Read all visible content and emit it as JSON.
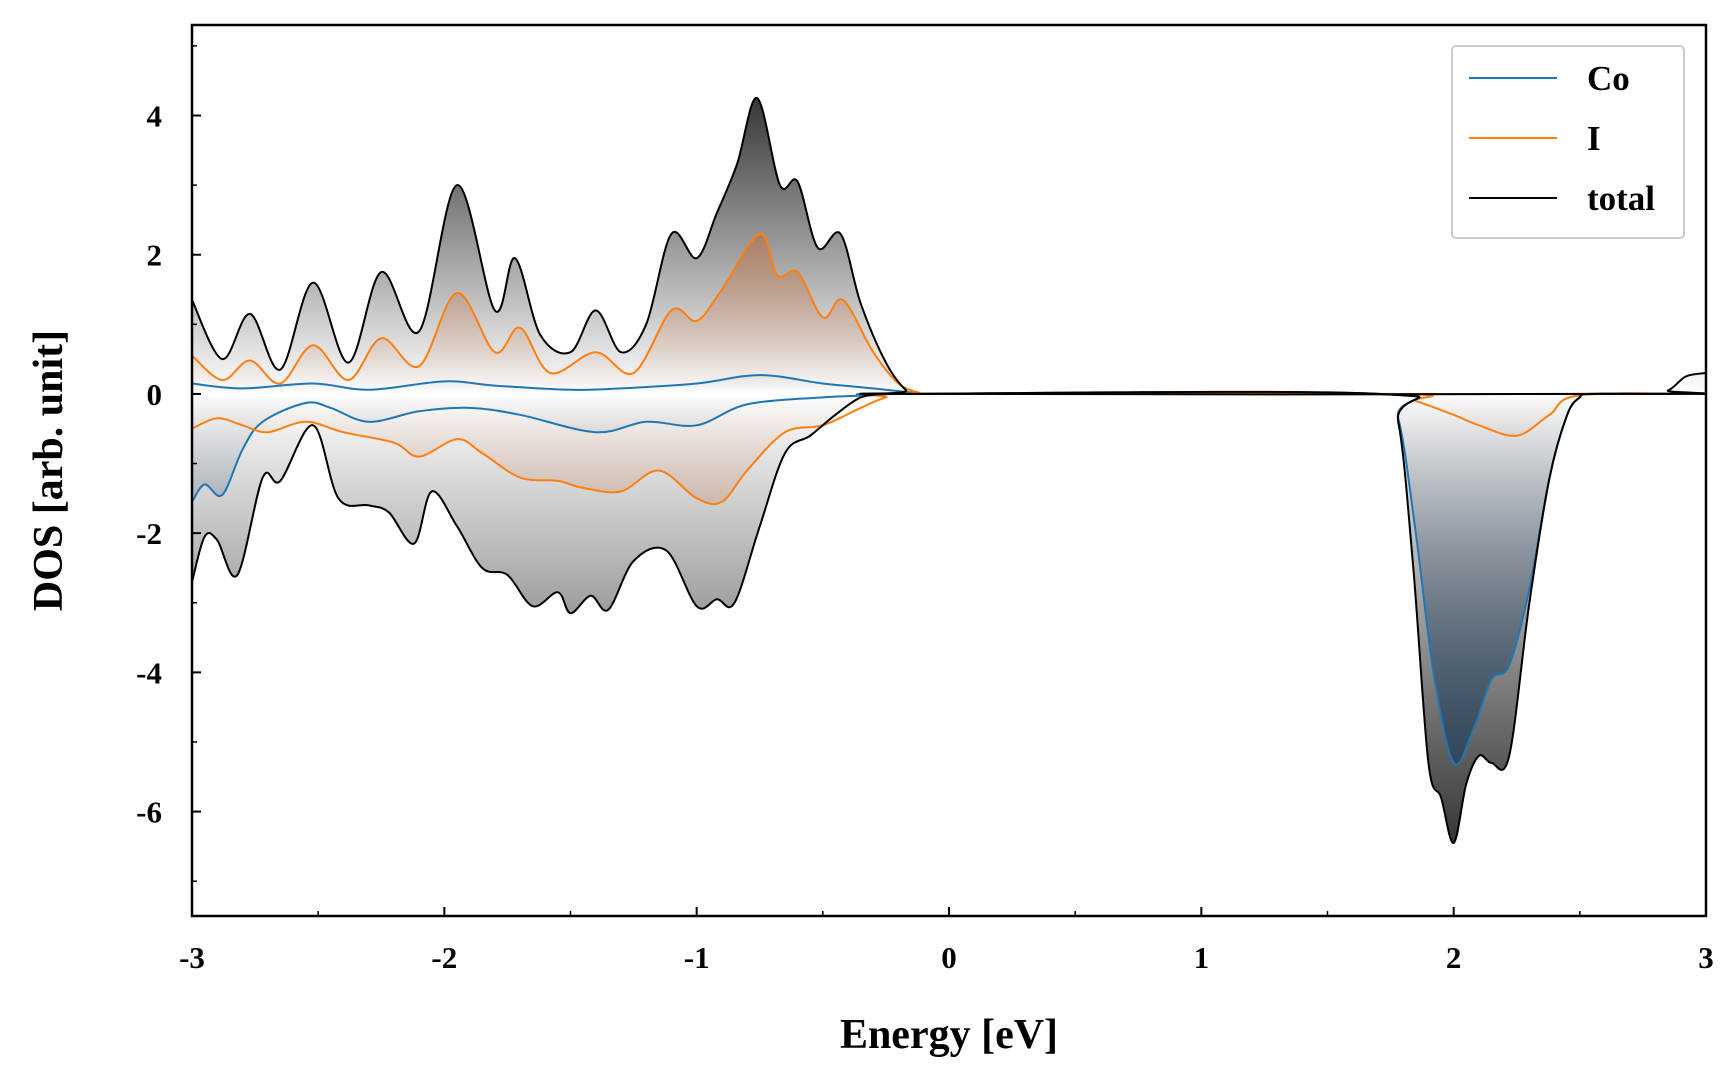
{
  "chart_data": {
    "type": "area",
    "xlabel": "Energy [eV]",
    "ylabel": "DOS [arb. unit]",
    "xlim": [
      -3,
      3
    ],
    "ylim": [
      -7.5,
      5.3
    ],
    "x_ticks": [
      -3,
      -2,
      -1,
      0,
      1,
      2,
      3
    ],
    "y_ticks": [
      -6,
      -4,
      -2,
      0,
      2,
      4
    ],
    "grid": false,
    "legend_position": "top-right",
    "colors": {
      "Co": "#1f77b4",
      "I": "#ff7f0e",
      "total": "#000000"
    },
    "series": [
      {
        "name": "Co",
        "spin_up": {
          "x": [
            -3.0,
            -2.8,
            -2.52,
            -2.3,
            -2.0,
            -1.8,
            -1.5,
            -1.3,
            -1.0,
            -0.75,
            -0.5,
            -0.3,
            -0.15,
            -0.08,
            2.85,
            3.0
          ],
          "y": [
            0.15,
            0.08,
            0.15,
            0.06,
            0.18,
            0.12,
            0.06,
            0.08,
            0.15,
            0.27,
            0.15,
            0.08,
            0.02,
            0.0,
            0.0,
            0.03
          ]
        },
        "spin_down": {
          "x": [
            -3.0,
            -2.95,
            -2.88,
            -2.8,
            -2.72,
            -2.55,
            -2.45,
            -2.3,
            -2.1,
            -1.9,
            -1.7,
            -1.4,
            -1.2,
            -1.0,
            -0.8,
            -0.5,
            -0.3,
            -0.2,
            1.7,
            1.78,
            1.85,
            1.92,
            2.0,
            2.08,
            2.15,
            2.22,
            2.3,
            2.38,
            2.45,
            2.5,
            2.55,
            3.0
          ],
          "y": [
            -1.55,
            -1.3,
            -1.45,
            -0.8,
            -0.4,
            -0.13,
            -0.2,
            -0.4,
            -0.25,
            -0.2,
            -0.3,
            -0.55,
            -0.4,
            -0.45,
            -0.15,
            -0.05,
            -0.02,
            0.0,
            0.0,
            -0.35,
            -2.0,
            -4.0,
            -5.3,
            -4.8,
            -4.1,
            -3.9,
            -2.8,
            -1.2,
            -0.3,
            -0.05,
            0.0,
            0.0
          ]
        }
      },
      {
        "name": "I",
        "spin_up": {
          "x": [
            -3.0,
            -2.88,
            -2.77,
            -2.65,
            -2.52,
            -2.38,
            -2.25,
            -2.1,
            -1.95,
            -1.8,
            -1.7,
            -1.58,
            -1.4,
            -1.25,
            -1.1,
            -1.0,
            -0.9,
            -0.75,
            -0.68,
            -0.6,
            -0.5,
            -0.42,
            -0.3,
            -0.2,
            -0.12,
            -0.08,
            2.85,
            3.0
          ],
          "y": [
            0.55,
            0.2,
            0.48,
            0.15,
            0.7,
            0.2,
            0.8,
            0.4,
            1.45,
            0.6,
            0.95,
            0.3,
            0.6,
            0.3,
            1.2,
            1.05,
            1.5,
            2.3,
            1.7,
            1.75,
            1.1,
            1.35,
            0.6,
            0.15,
            0.02,
            0.0,
            0.0,
            0.05
          ]
        },
        "spin_down": {
          "x": [
            -3.0,
            -2.9,
            -2.8,
            -2.7,
            -2.55,
            -2.4,
            -2.2,
            -2.1,
            -1.95,
            -1.85,
            -1.7,
            -1.55,
            -1.45,
            -1.3,
            -1.15,
            -1.0,
            -0.9,
            -0.8,
            -0.65,
            -0.5,
            -0.35,
            -0.25,
            -0.15,
            1.75,
            1.85,
            2.0,
            2.1,
            2.25,
            2.38,
            2.5,
            3.0
          ],
          "y": [
            -0.5,
            -0.35,
            -0.45,
            -0.55,
            -0.4,
            -0.55,
            -0.7,
            -0.9,
            -0.65,
            -0.85,
            -1.2,
            -1.25,
            -1.35,
            -1.4,
            -1.1,
            -1.5,
            -1.55,
            -1.1,
            -0.55,
            -0.45,
            -0.2,
            -0.05,
            0.0,
            0.0,
            -0.1,
            -0.3,
            -0.45,
            -0.6,
            -0.3,
            -0.02,
            0.0
          ]
        }
      },
      {
        "name": "total",
        "spin_up": {
          "x": [
            -3.0,
            -2.88,
            -2.77,
            -2.65,
            -2.52,
            -2.38,
            -2.25,
            -2.1,
            -1.95,
            -1.8,
            -1.72,
            -1.62,
            -1.5,
            -1.4,
            -1.3,
            -1.2,
            -1.1,
            -1.0,
            -0.92,
            -0.84,
            -0.76,
            -0.67,
            -0.6,
            -0.52,
            -0.43,
            -0.35,
            -0.25,
            -0.17,
            -0.12,
            2.75,
            2.85,
            2.92,
            3.0
          ],
          "y": [
            1.35,
            0.5,
            1.15,
            0.35,
            1.6,
            0.45,
            1.75,
            0.9,
            3.0,
            1.2,
            1.95,
            0.85,
            0.6,
            1.2,
            0.6,
            1.0,
            2.3,
            1.95,
            2.6,
            3.3,
            4.25,
            3.0,
            3.05,
            2.1,
            2.3,
            1.3,
            0.45,
            0.05,
            0.0,
            0.0,
            0.05,
            0.25,
            0.3
          ]
        },
        "spin_down": {
          "x": [
            -3.0,
            -2.95,
            -2.9,
            -2.82,
            -2.72,
            -2.65,
            -2.52,
            -2.42,
            -2.3,
            -2.22,
            -2.12,
            -2.05,
            -1.95,
            -1.85,
            -1.75,
            -1.65,
            -1.55,
            -1.5,
            -1.42,
            -1.35,
            -1.25,
            -1.12,
            -1.0,
            -0.92,
            -0.85,
            -0.75,
            -0.65,
            -0.55,
            -0.45,
            -0.35,
            -0.25,
            -0.2,
            1.7,
            1.78,
            1.84,
            1.9,
            1.95,
            2.0,
            2.05,
            2.1,
            2.15,
            2.22,
            2.3,
            2.38,
            2.45,
            2.5,
            2.55,
            3.0
          ],
          "y": [
            -2.7,
            -2.05,
            -2.1,
            -2.6,
            -1.2,
            -1.25,
            -0.45,
            -1.5,
            -1.6,
            -1.7,
            -2.15,
            -1.4,
            -1.9,
            -2.5,
            -2.6,
            -3.05,
            -2.85,
            -3.15,
            -2.9,
            -3.1,
            -2.4,
            -2.25,
            -3.05,
            -2.95,
            -3.0,
            -1.9,
            -0.85,
            -0.6,
            -0.3,
            -0.05,
            0.0,
            0.0,
            0.0,
            -0.4,
            -2.5,
            -5.3,
            -5.8,
            -6.45,
            -5.6,
            -5.2,
            -5.3,
            -5.2,
            -3.0,
            -1.2,
            -0.3,
            -0.05,
            0.0,
            0.0
          ]
        }
      }
    ]
  }
}
